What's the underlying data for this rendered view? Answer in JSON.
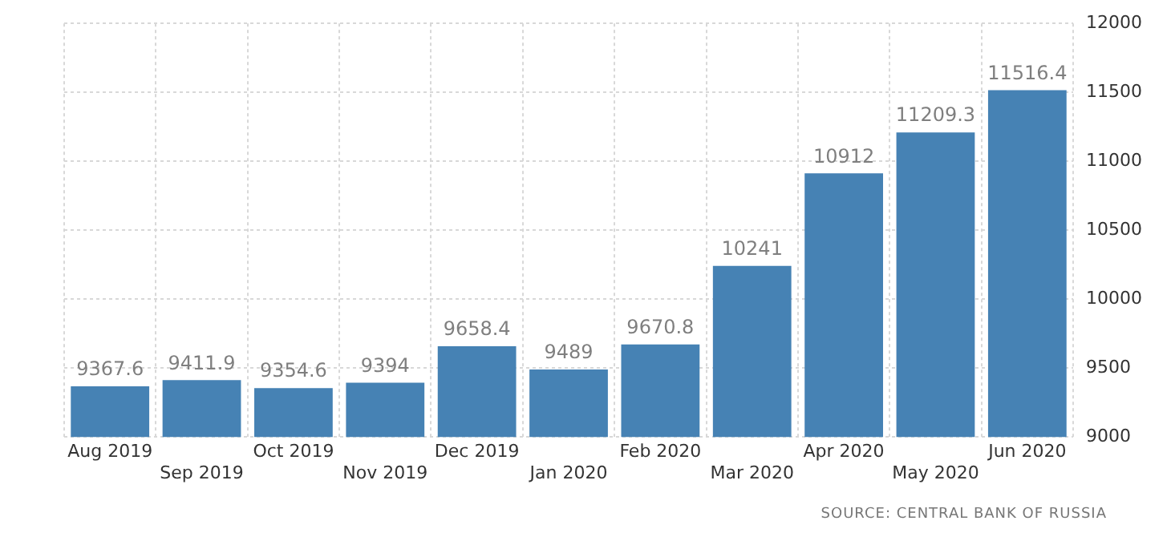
{
  "chart_data": {
    "type": "bar",
    "categories": [
      "Aug 2019",
      "Sep 2019",
      "Oct 2019",
      "Nov 2019",
      "Dec 2019",
      "Jan 2020",
      "Feb 2020",
      "Mar 2020",
      "Apr 2020",
      "May 2020",
      "Jun 2020"
    ],
    "values": [
      9367.6,
      9411.9,
      9354.6,
      9394,
      9658.4,
      9489,
      9670.8,
      10241,
      10912,
      11209.3,
      11516.4
    ],
    "color": "#4682b4",
    "ylim": [
      9000,
      12000
    ],
    "yticks": [
      9000,
      9500,
      10000,
      10500,
      11000,
      11500,
      12000
    ],
    "grid": true,
    "data_labels": true,
    "annotations": [
      "SOURCE: CENTRAL BANK OF RUSSIA"
    ]
  }
}
